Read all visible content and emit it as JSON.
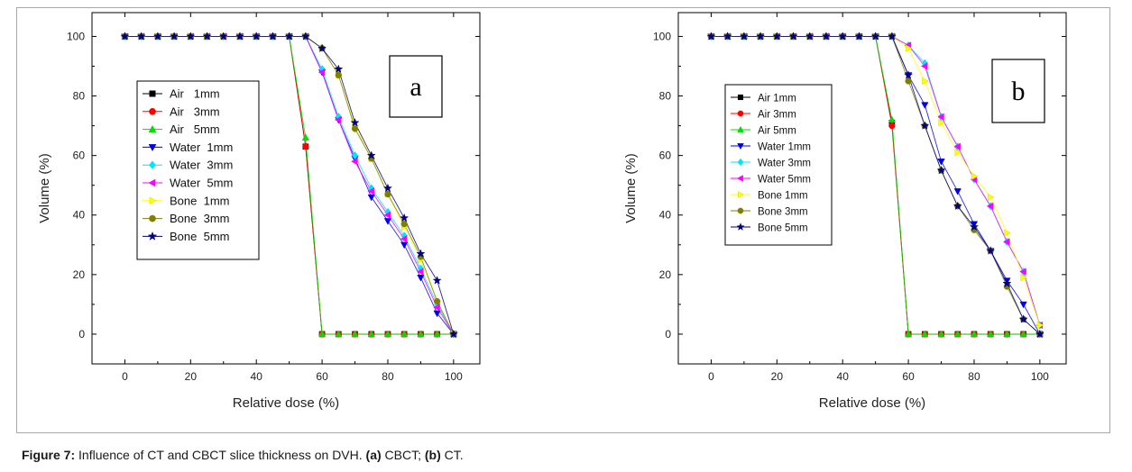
{
  "caption": {
    "label": "Figure 7:",
    "text": " Influence of CT and CBCT slice thickness on DVH. ",
    "a_label": "(a)",
    "a_text": " CBCT; ",
    "b_label": "(b)",
    "b_text": " CT."
  },
  "chart_data": [
    {
      "type": "line",
      "panel_label": "a",
      "xlabel": "Relative dose (%)",
      "ylabel": "Volume (%)",
      "xlim": [
        -10,
        108
      ],
      "ylim": [
        -10,
        108
      ],
      "xticks": [
        0,
        20,
        40,
        60,
        80,
        100
      ],
      "yticks": [
        0,
        20,
        40,
        60,
        80,
        100
      ],
      "series": [
        {
          "name": "Air   1mm",
          "color": "#000000",
          "marker": "square",
          "x": [
            0,
            5,
            10,
            15,
            20,
            25,
            30,
            35,
            40,
            45,
            50,
            55,
            60,
            65,
            70,
            75,
            80,
            85,
            90,
            95,
            100
          ],
          "y": [
            100,
            100,
            100,
            100,
            100,
            100,
            100,
            100,
            100,
            100,
            100,
            63,
            0,
            0,
            0,
            0,
            0,
            0,
            0,
            0,
            0
          ]
        },
        {
          "name": "Air   3mm",
          "color": "#ff0000",
          "marker": "circle",
          "x": [
            0,
            5,
            10,
            15,
            20,
            25,
            30,
            35,
            40,
            45,
            50,
            55,
            60,
            65,
            70,
            75,
            80,
            85,
            90,
            95,
            100
          ],
          "y": [
            100,
            100,
            100,
            100,
            100,
            100,
            100,
            100,
            100,
            100,
            100,
            63,
            0,
            0,
            0,
            0,
            0,
            0,
            0,
            0,
            0
          ]
        },
        {
          "name": "Air   5mm",
          "color": "#00dd00",
          "marker": "triangle-up",
          "x": [
            0,
            5,
            10,
            15,
            20,
            25,
            30,
            35,
            40,
            45,
            50,
            55,
            60,
            65,
            70,
            75,
            80,
            85,
            90,
            95,
            100
          ],
          "y": [
            100,
            100,
            100,
            100,
            100,
            100,
            100,
            100,
            100,
            100,
            100,
            66,
            0,
            0,
            0,
            0,
            0,
            0,
            0,
            0,
            0
          ]
        },
        {
          "name": "Water  1mm",
          "color": "#0000ee",
          "marker": "triangle-down",
          "x": [
            0,
            5,
            10,
            15,
            20,
            25,
            30,
            35,
            40,
            45,
            50,
            55,
            60,
            65,
            70,
            75,
            80,
            85,
            90,
            95,
            100
          ],
          "y": [
            100,
            100,
            100,
            100,
            100,
            100,
            100,
            100,
            100,
            100,
            100,
            100,
            88,
            72,
            59,
            46,
            38,
            30,
            19,
            7,
            0
          ]
        },
        {
          "name": "Water  3mm",
          "color": "#00e5ff",
          "marker": "diamond",
          "x": [
            0,
            5,
            10,
            15,
            20,
            25,
            30,
            35,
            40,
            45,
            50,
            55,
            60,
            65,
            70,
            75,
            80,
            85,
            90,
            95,
            100
          ],
          "y": [
            100,
            100,
            100,
            100,
            100,
            100,
            100,
            100,
            100,
            100,
            100,
            100,
            89,
            73,
            60,
            49,
            41,
            33,
            22,
            10,
            0
          ]
        },
        {
          "name": "Water  5mm",
          "color": "#ff00ff",
          "marker": "triangle-left",
          "x": [
            0,
            5,
            10,
            15,
            20,
            25,
            30,
            35,
            40,
            45,
            50,
            55,
            60,
            65,
            70,
            75,
            80,
            85,
            90,
            95,
            100
          ],
          "y": [
            100,
            100,
            100,
            100,
            100,
            100,
            100,
            100,
            100,
            100,
            100,
            100,
            88,
            72,
            58,
            48,
            40,
            32,
            21,
            9,
            0
          ]
        },
        {
          "name": "Bone  1mm",
          "color": "#ffff00",
          "marker": "triangle-right",
          "x": [
            0,
            5,
            10,
            15,
            20,
            25,
            30,
            35,
            40,
            45,
            50,
            55,
            60,
            65,
            70,
            75,
            80,
            85,
            90,
            95,
            100
          ],
          "y": [
            100,
            100,
            100,
            100,
            100,
            100,
            100,
            100,
            100,
            100,
            100,
            100,
            96,
            87,
            70,
            59,
            47,
            36,
            25,
            11,
            0
          ]
        },
        {
          "name": "Bone  3mm",
          "color": "#808000",
          "marker": "circle",
          "x": [
            0,
            5,
            10,
            15,
            20,
            25,
            30,
            35,
            40,
            45,
            50,
            55,
            60,
            65,
            70,
            75,
            80,
            85,
            90,
            95,
            100
          ],
          "y": [
            100,
            100,
            100,
            100,
            100,
            100,
            100,
            100,
            100,
            100,
            100,
            100,
            96,
            87,
            69,
            59,
            47,
            37,
            26,
            11,
            0
          ]
        },
        {
          "name": "Bone  5mm",
          "color": "#000080",
          "marker": "star",
          "x": [
            0,
            5,
            10,
            15,
            20,
            25,
            30,
            35,
            40,
            45,
            50,
            55,
            60,
            65,
            70,
            75,
            80,
            85,
            90,
            95,
            100
          ],
          "y": [
            100,
            100,
            100,
            100,
            100,
            100,
            100,
            100,
            100,
            100,
            100,
            100,
            96,
            89,
            71,
            60,
            49,
            39,
            27,
            18,
            0
          ]
        }
      ]
    },
    {
      "type": "line",
      "panel_label": "b",
      "xlabel": "Relative dose (%)",
      "ylabel": "Volume (%)",
      "xlim": [
        -10,
        108
      ],
      "ylim": [
        -10,
        108
      ],
      "xticks": [
        0,
        20,
        40,
        60,
        80,
        100
      ],
      "yticks": [
        0,
        20,
        40,
        60,
        80,
        100
      ],
      "series": [
        {
          "name": "Air 1mm",
          "color": "#000000",
          "marker": "square",
          "x": [
            0,
            5,
            10,
            15,
            20,
            25,
            30,
            35,
            40,
            45,
            50,
            55,
            60,
            65,
            70,
            75,
            80,
            85,
            90,
            95,
            100
          ],
          "y": [
            100,
            100,
            100,
            100,
            100,
            100,
            100,
            100,
            100,
            100,
            100,
            71,
            0,
            0,
            0,
            0,
            0,
            0,
            0,
            0,
            0
          ]
        },
        {
          "name": "Air 3mm",
          "color": "#ff0000",
          "marker": "circle",
          "x": [
            0,
            5,
            10,
            15,
            20,
            25,
            30,
            35,
            40,
            45,
            50,
            55,
            60,
            65,
            70,
            75,
            80,
            85,
            90,
            95,
            100
          ],
          "y": [
            100,
            100,
            100,
            100,
            100,
            100,
            100,
            100,
            100,
            100,
            100,
            70,
            0,
            0,
            0,
            0,
            0,
            0,
            0,
            0,
            0
          ]
        },
        {
          "name": "Air 5mm",
          "color": "#00dd00",
          "marker": "triangle-up",
          "x": [
            0,
            5,
            10,
            15,
            20,
            25,
            30,
            35,
            40,
            45,
            50,
            55,
            60,
            65,
            70,
            75,
            80,
            85,
            90,
            95,
            100
          ],
          "y": [
            100,
            100,
            100,
            100,
            100,
            100,
            100,
            100,
            100,
            100,
            100,
            72,
            0,
            0,
            0,
            0,
            0,
            0,
            0,
            0,
            0
          ]
        },
        {
          "name": "Water 1mm",
          "color": "#0000ee",
          "marker": "triangle-down",
          "x": [
            0,
            5,
            10,
            15,
            20,
            25,
            30,
            35,
            40,
            45,
            50,
            55,
            60,
            65,
            70,
            75,
            80,
            85,
            90,
            95,
            100
          ],
          "y": [
            100,
            100,
            100,
            100,
            100,
            100,
            100,
            100,
            100,
            100,
            100,
            100,
            87,
            77,
            58,
            48,
            37,
            28,
            18,
            10,
            0
          ]
        },
        {
          "name": "Water 3mm",
          "color": "#00e5ff",
          "marker": "diamond",
          "x": [
            0,
            5,
            10,
            15,
            20,
            25,
            30,
            35,
            40,
            45,
            50,
            55,
            60,
            65,
            70,
            75,
            80,
            85,
            90,
            95,
            100
          ],
          "y": [
            100,
            100,
            100,
            100,
            100,
            100,
            100,
            100,
            100,
            100,
            100,
            100,
            97,
            91,
            73,
            63,
            52,
            43,
            31,
            21,
            3
          ]
        },
        {
          "name": "Water 5mm",
          "color": "#ff00ff",
          "marker": "triangle-left",
          "x": [
            0,
            5,
            10,
            15,
            20,
            25,
            30,
            35,
            40,
            45,
            50,
            55,
            60,
            65,
            70,
            75,
            80,
            85,
            90,
            95,
            100
          ],
          "y": [
            100,
            100,
            100,
            100,
            100,
            100,
            100,
            100,
            100,
            100,
            100,
            100,
            97,
            90,
            73,
            63,
            52,
            43,
            31,
            21,
            3
          ]
        },
        {
          "name": "Bone 1mm",
          "color": "#ffff00",
          "marker": "triangle-right",
          "x": [
            0,
            5,
            10,
            15,
            20,
            25,
            30,
            35,
            40,
            45,
            50,
            55,
            60,
            65,
            70,
            75,
            80,
            85,
            90,
            95,
            100
          ],
          "y": [
            100,
            100,
            100,
            100,
            100,
            100,
            100,
            100,
            100,
            100,
            100,
            100,
            96,
            85,
            71,
            61,
            53,
            46,
            34,
            19,
            3
          ]
        },
        {
          "name": "Bone 3mm",
          "color": "#808000",
          "marker": "circle",
          "x": [
            0,
            5,
            10,
            15,
            20,
            25,
            30,
            35,
            40,
            45,
            50,
            55,
            60,
            65,
            70,
            75,
            80,
            85,
            90,
            95,
            100
          ],
          "y": [
            100,
            100,
            100,
            100,
            100,
            100,
            100,
            100,
            100,
            100,
            100,
            100,
            85,
            70,
            55,
            43,
            35,
            28,
            16,
            5,
            0
          ]
        },
        {
          "name": "Bone 5mm",
          "color": "#000080",
          "marker": "star",
          "x": [
            0,
            5,
            10,
            15,
            20,
            25,
            30,
            35,
            40,
            45,
            50,
            55,
            60,
            65,
            70,
            75,
            80,
            85,
            90,
            95,
            100
          ],
          "y": [
            100,
            100,
            100,
            100,
            100,
            100,
            100,
            100,
            100,
            100,
            100,
            100,
            87,
            70,
            55,
            43,
            36,
            28,
            17,
            5,
            0
          ]
        }
      ]
    }
  ]
}
